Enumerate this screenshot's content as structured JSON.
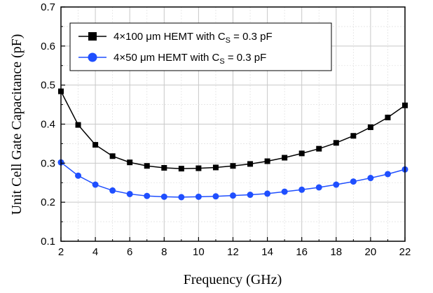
{
  "chart_data": {
    "type": "line",
    "xlabel": "Frequency (GHz)",
    "ylabel": "Unit Cell Gate Capacitance (pF)",
    "xlim": [
      2,
      22
    ],
    "ylim": [
      0.1,
      0.7
    ],
    "x_ticks": [
      "2",
      "4",
      "6",
      "8",
      "10",
      "12",
      "14",
      "16",
      "18",
      "20",
      "22"
    ],
    "y_ticks": [
      "0.1",
      "0.2",
      "0.3",
      "0.4",
      "0.5",
      "0.6",
      "0.7"
    ],
    "grid": true,
    "legend_position": "top",
    "x": [
      2,
      3,
      4,
      5,
      6,
      7,
      8,
      9,
      10,
      11,
      12,
      13,
      14,
      15,
      16,
      17,
      18,
      19,
      20,
      21,
      22
    ],
    "series": [
      {
        "name_main": "4×100 μm HEMT with C",
        "name_sub": "S",
        "name_tail": " = 0.3 pF",
        "color": "#000000",
        "marker": "square",
        "values": [
          0.484,
          0.398,
          0.347,
          0.318,
          0.302,
          0.293,
          0.288,
          0.286,
          0.287,
          0.289,
          0.293,
          0.298,
          0.305,
          0.314,
          0.325,
          0.337,
          0.352,
          0.37,
          0.392,
          0.417,
          0.448
        ]
      },
      {
        "name_main": "4×50 μm HEMT with C",
        "name_sub": "S",
        "name_tail": " = 0.3 pF",
        "color": "#1f4fff",
        "marker": "circle",
        "values": [
          0.302,
          0.268,
          0.245,
          0.23,
          0.221,
          0.216,
          0.214,
          0.213,
          0.214,
          0.215,
          0.217,
          0.219,
          0.222,
          0.227,
          0.232,
          0.238,
          0.245,
          0.253,
          0.262,
          0.272,
          0.284
        ]
      }
    ]
  }
}
